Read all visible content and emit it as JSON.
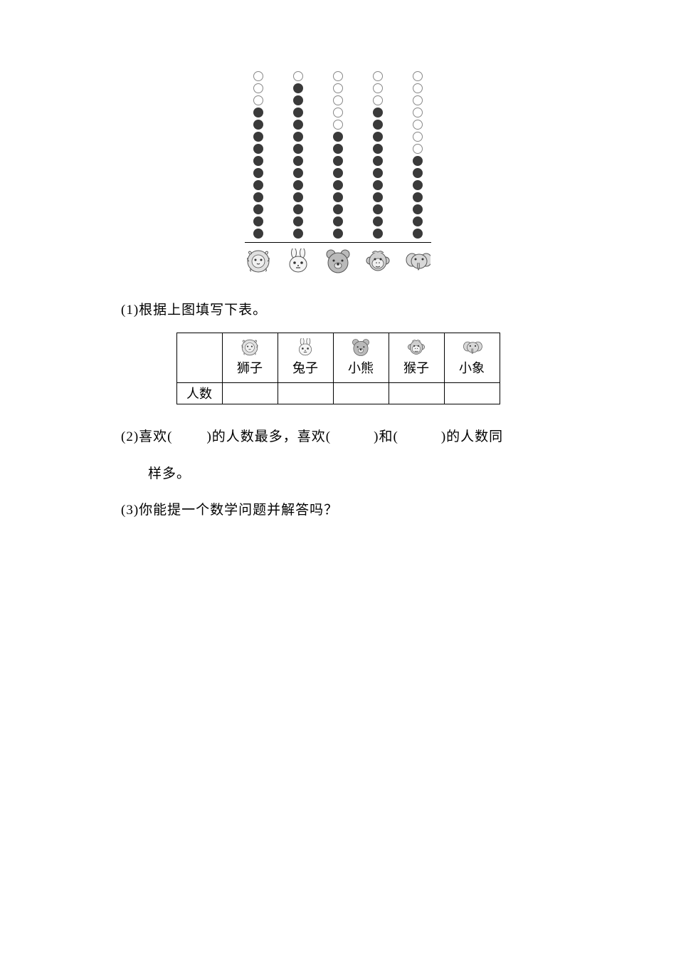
{
  "chart": {
    "type": "dot-column",
    "max_dots": 14,
    "dot_filled_color": "#3a3a3a",
    "dot_empty_border": "#888888",
    "dot_size": 14,
    "axis_line_color": "#000000",
    "columns": [
      {
        "animal": "lion",
        "filled": 11,
        "empty": 3
      },
      {
        "animal": "rabbit",
        "filled": 13,
        "empty": 1
      },
      {
        "animal": "bear",
        "filled": 9,
        "empty": 5
      },
      {
        "animal": "monkey",
        "filled": 11,
        "empty": 3
      },
      {
        "animal": "elephant",
        "filled": 7,
        "empty": 7
      }
    ]
  },
  "table": {
    "row_header": "人数",
    "columns": [
      {
        "icon": "lion",
        "label": "狮子",
        "value": ""
      },
      {
        "icon": "rabbit",
        "label": "兔子",
        "value": ""
      },
      {
        "icon": "bear",
        "label": "小熊",
        "value": ""
      },
      {
        "icon": "monkey",
        "label": "猴子",
        "value": ""
      },
      {
        "icon": "elephant",
        "label": "小象",
        "value": ""
      }
    ]
  },
  "questions": {
    "q1_prefix": "(1)",
    "q1_text": "根据上图填写下表。",
    "q2_prefix": "(2)",
    "q2_part1": "喜欢(",
    "q2_blank1": "　　",
    "q2_part2": ")的人数最多，喜欢(",
    "q2_blank2": "　　　",
    "q2_part3": ")和(",
    "q2_blank3": "　　　",
    "q2_part4": ")的人数同",
    "q2_line2": "样多。",
    "q3_prefix": "(3)",
    "q3_text": "你能提一个数学问题并解答吗？"
  },
  "icons": {
    "lion": "lion",
    "rabbit": "rabbit",
    "bear": "bear",
    "monkey": "monkey",
    "elephant": "elephant"
  }
}
